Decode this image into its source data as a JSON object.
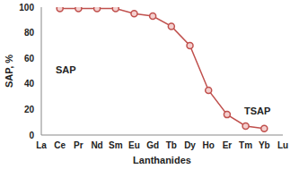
{
  "chart_data": {
    "type": "line",
    "x_label": "Lanthanides",
    "y_label": "SAP, %",
    "categories": [
      "La",
      "Ce",
      "Pr",
      "Nd",
      "Sm",
      "Eu",
      "Gd",
      "Tb",
      "Dy",
      "Ho",
      "Er",
      "Tm",
      "Yb",
      "Lu"
    ],
    "values": [
      null,
      99,
      99,
      99,
      99,
      95,
      93,
      85,
      70,
      35,
      16,
      7,
      5,
      null
    ],
    "color": "#c0504d",
    "marker": "circle",
    "ylim": [
      0,
      100
    ],
    "yticks": [
      0,
      20,
      40,
      60,
      80,
      100
    ],
    "grid": false,
    "annotations": [
      "SAP",
      "TSAP"
    ]
  }
}
